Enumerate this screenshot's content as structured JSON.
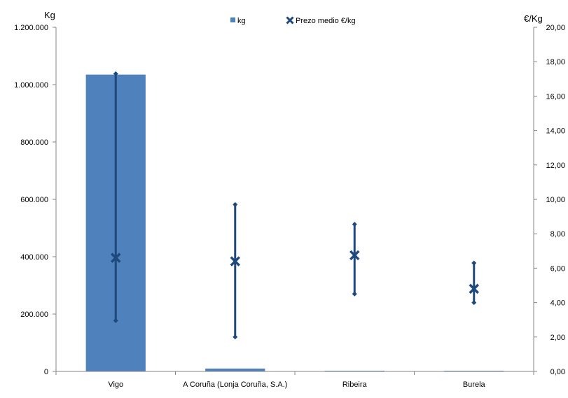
{
  "chart_data": {
    "type": "bar",
    "categories": [
      "Vigo",
      "A Coruña (Lonja Coruña, S.A.)",
      "Ribeira",
      "Burela"
    ],
    "y_left": {
      "title": "Kg",
      "ylim": [
        0,
        1200000
      ],
      "ticks": [
        0,
        200000,
        400000,
        600000,
        800000,
        1000000,
        1200000
      ],
      "tick_labels": [
        "0",
        "200.000",
        "400.000",
        "600.000",
        "800.000",
        "1.000.000",
        "1.200.000"
      ]
    },
    "y_right": {
      "title": "€/Kg",
      "ylim": [
        0,
        20
      ],
      "ticks": [
        0,
        2,
        4,
        6,
        8,
        10,
        12,
        14,
        16,
        18,
        20
      ],
      "tick_labels": [
        "0,00",
        "2,00",
        "4,00",
        "6,00",
        "8,00",
        "10,00",
        "12,00",
        "14,00",
        "16,00",
        "18,00",
        "20,00"
      ]
    },
    "series": [
      {
        "name": "kg",
        "kind": "bar",
        "axis": "left",
        "color": "#4f81bd",
        "values": [
          1035000,
          10000,
          2500,
          1500
        ]
      },
      {
        "name": "Prezo medio €/kg",
        "kind": "marker-range",
        "axis": "right",
        "color": "#1f497d",
        "values": [
          6.6,
          6.4,
          6.75,
          4.8
        ],
        "min": [
          2.95,
          2.0,
          4.5,
          4.0
        ],
        "max": [
          17.3,
          9.7,
          8.55,
          6.3
        ]
      }
    ],
    "legend": {
      "position": "top"
    },
    "grid": false
  }
}
